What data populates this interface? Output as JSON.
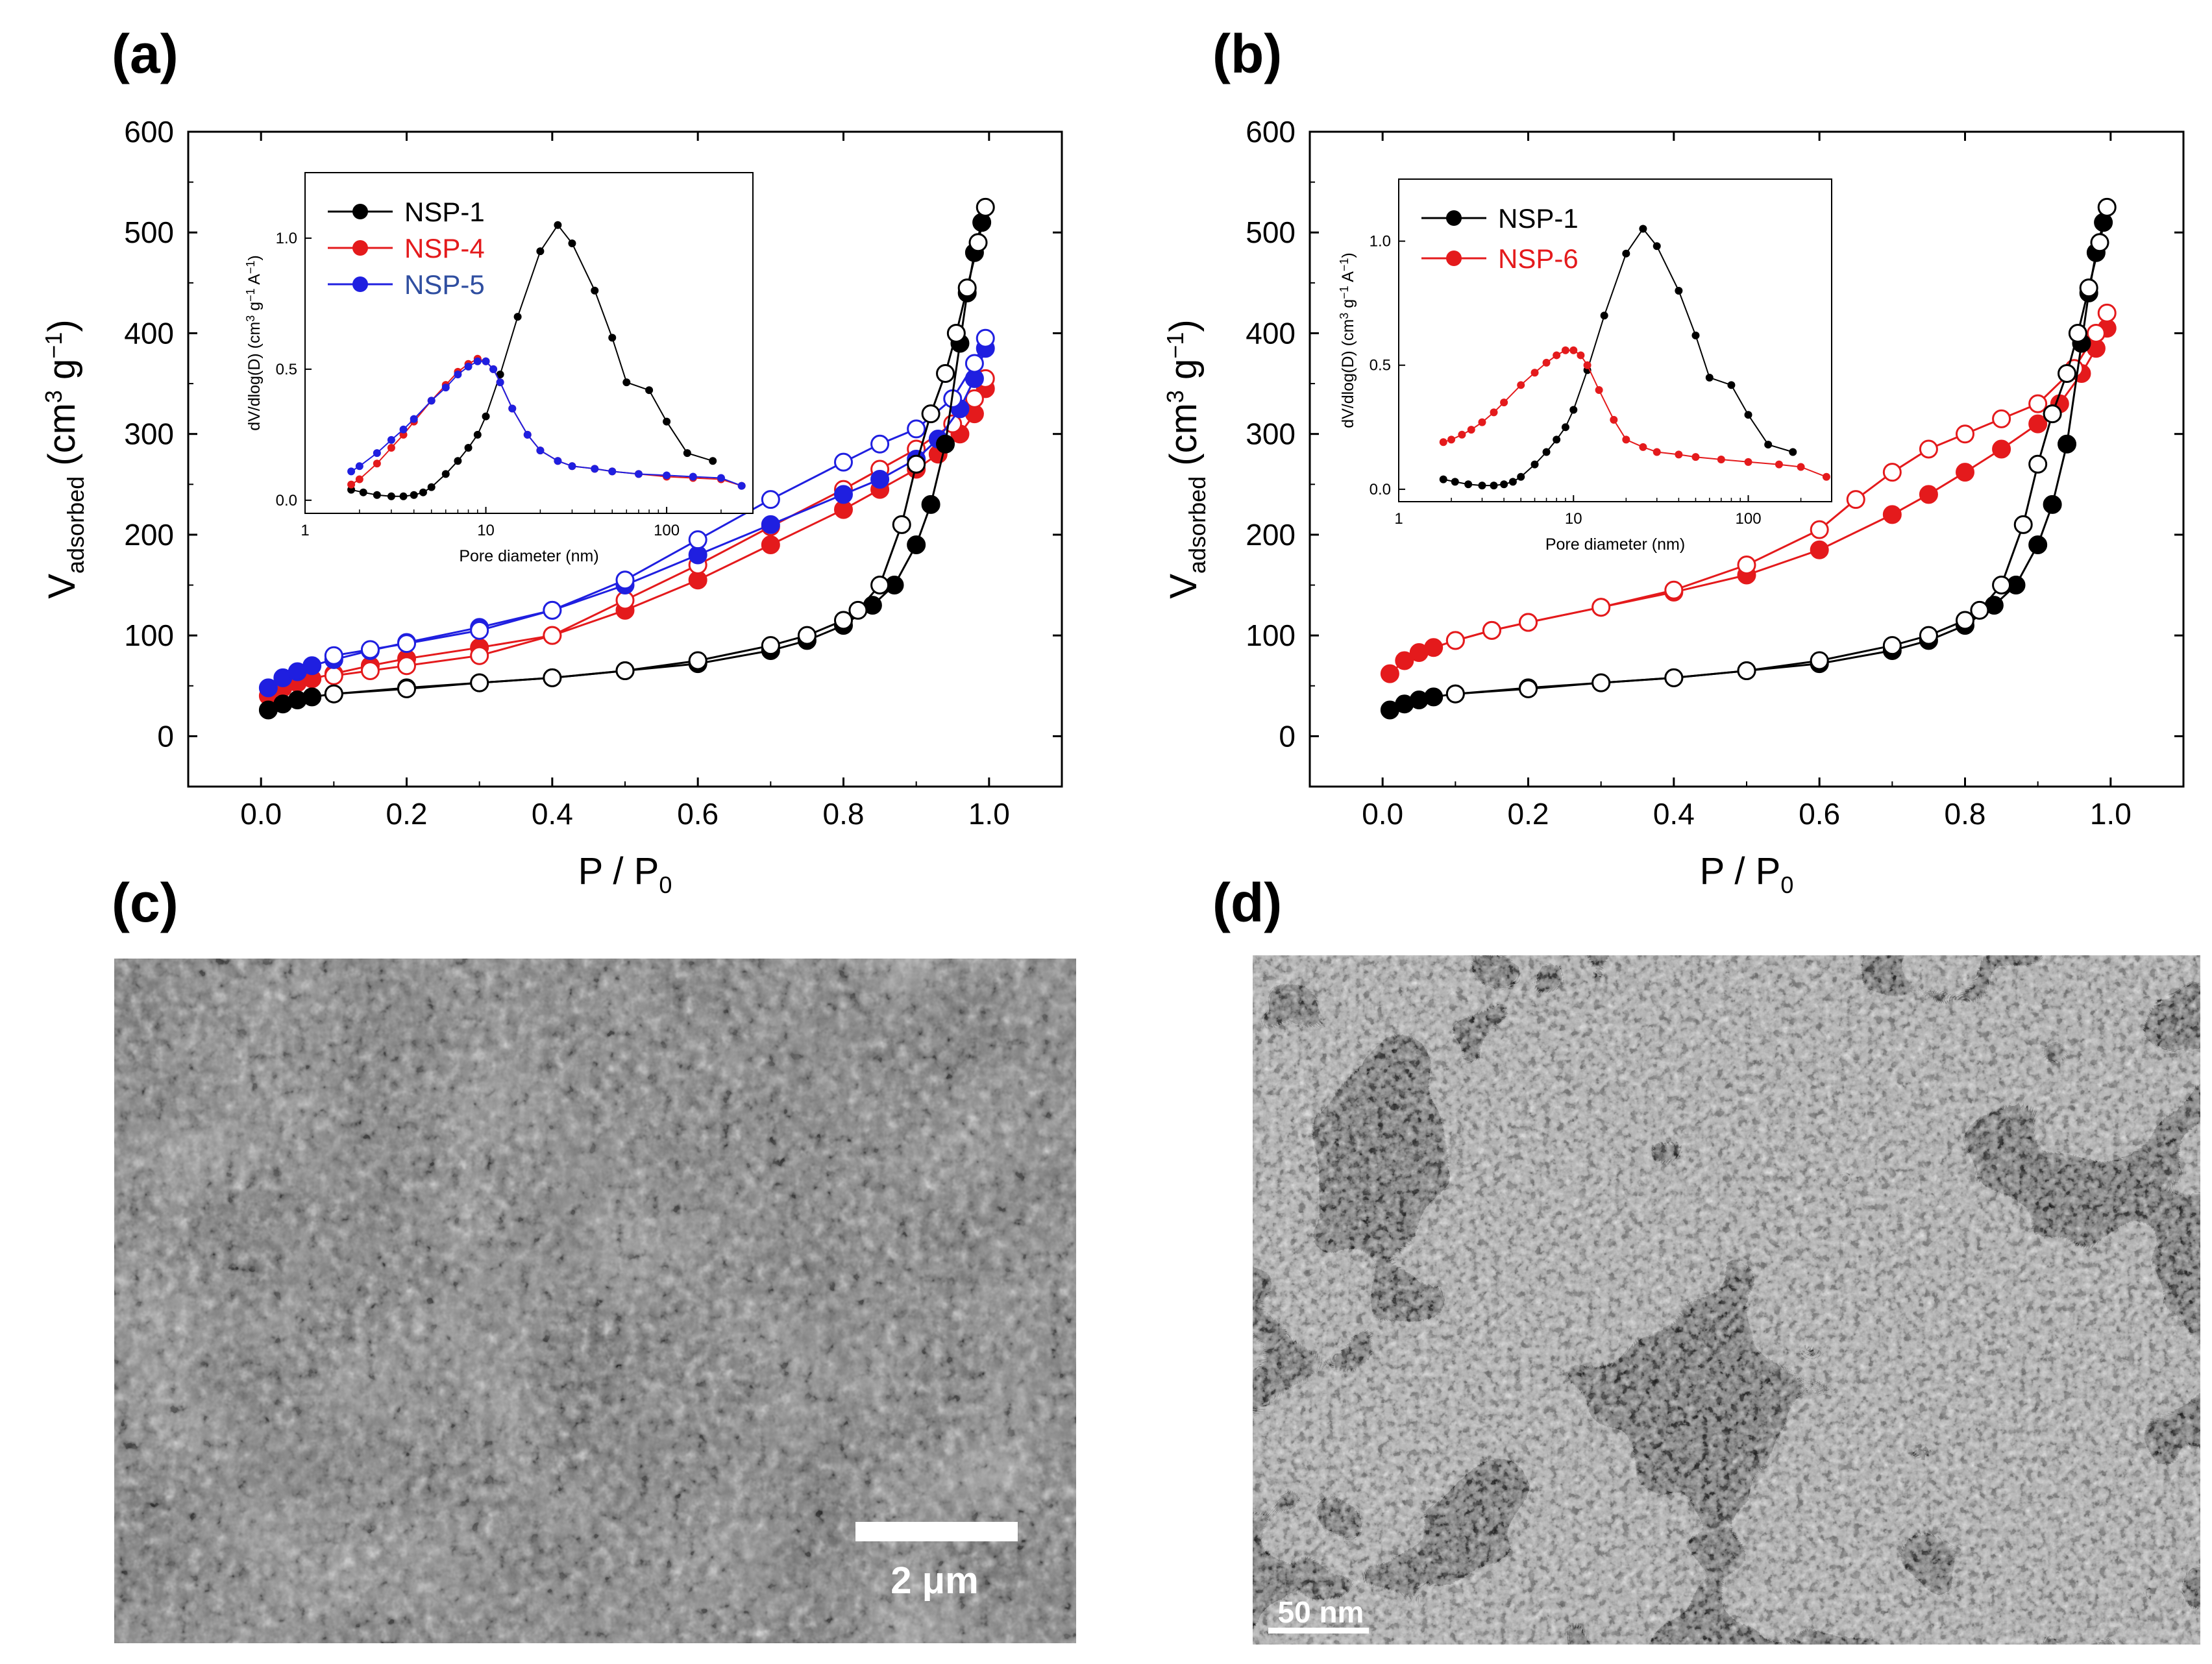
{
  "panels": {
    "a": {
      "letter": "(a)"
    },
    "b": {
      "letter": "(b)"
    },
    "c": {
      "letter": "(c)",
      "scale_bar_label": "2 μm"
    },
    "d": {
      "letter": "(d)",
      "scale_bar_label": "50 nm"
    }
  },
  "colors": {
    "NSP-1": "#000000",
    "NSP-4": "#e41a1c",
    "NSP-5": "#1f1fe0",
    "NSP-6": "#e41a1c"
  },
  "chart_data": [
    {
      "id": "a",
      "type": "scatter",
      "title": "",
      "xlabel": "P / P0",
      "ylabel": "Vadsorbed (cm3 g-1)",
      "xlabel_main": "P / P",
      "xlabel_sub": "0",
      "ylabel_main": "V",
      "ylabel_sub": "adsorbed",
      "ylabel_unit": "(cm",
      "ylabel_sup3": "3",
      "ylabel_g": " g",
      "ylabel_sup_neg1": "−1",
      "ylabel_close": ")",
      "xlim": [
        -0.1,
        1.1
      ],
      "ylim": [
        -50,
        600
      ],
      "xticks": [
        "0.0",
        "0.2",
        "0.4",
        "0.6",
        "0.8",
        "1.0"
      ],
      "yticks": [
        "0",
        "100",
        "200",
        "300",
        "400",
        "500",
        "600"
      ],
      "series": [
        {
          "name": "NSP-4",
          "kind": "adsorption",
          "x": [
            0.01,
            0.03,
            0.05,
            0.07,
            0.1,
            0.15,
            0.2,
            0.3,
            0.4,
            0.5,
            0.6,
            0.7,
            0.8,
            0.85,
            0.9,
            0.93,
            0.96,
            0.98,
            0.995
          ],
          "y": [
            40,
            48,
            53,
            57,
            62,
            70,
            77,
            88,
            100,
            125,
            155,
            190,
            225,
            245,
            265,
            280,
            300,
            320,
            345
          ]
        },
        {
          "name": "NSP-4",
          "kind": "desorption",
          "x": [
            0.995,
            0.98,
            0.95,
            0.9,
            0.85,
            0.8,
            0.7,
            0.6,
            0.5,
            0.4,
            0.3,
            0.2,
            0.15,
            0.1
          ],
          "y": [
            355,
            335,
            310,
            285,
            265,
            245,
            208,
            170,
            135,
            100,
            80,
            70,
            65,
            60
          ]
        },
        {
          "name": "NSP-5",
          "kind": "adsorption",
          "x": [
            0.01,
            0.03,
            0.05,
            0.07,
            0.1,
            0.15,
            0.2,
            0.3,
            0.4,
            0.5,
            0.6,
            0.7,
            0.8,
            0.85,
            0.9,
            0.93,
            0.96,
            0.98,
            0.995
          ],
          "y": [
            48,
            58,
            64,
            70,
            76,
            85,
            93,
            108,
            125,
            150,
            180,
            210,
            240,
            255,
            275,
            295,
            325,
            355,
            385
          ]
        },
        {
          "name": "NSP-5",
          "kind": "desorption",
          "x": [
            0.995,
            0.98,
            0.95,
            0.9,
            0.85,
            0.8,
            0.7,
            0.6,
            0.5,
            0.4,
            0.3,
            0.2,
            0.15,
            0.1
          ],
          "y": [
            395,
            370,
            335,
            305,
            290,
            272,
            235,
            195,
            155,
            125,
            105,
            92,
            86,
            80
          ]
        },
        {
          "name": "NSP-1",
          "kind": "adsorption",
          "x": [
            0.01,
            0.03,
            0.05,
            0.07,
            0.1,
            0.2,
            0.3,
            0.4,
            0.5,
            0.6,
            0.7,
            0.75,
            0.8,
            0.84,
            0.87,
            0.9,
            0.92,
            0.94,
            0.96,
            0.97,
            0.98,
            0.99
          ],
          "y": [
            26,
            32,
            36,
            39,
            42,
            48,
            53,
            58,
            65,
            72,
            85,
            95,
            110,
            130,
            150,
            190,
            230,
            290,
            390,
            440,
            480,
            510
          ]
        },
        {
          "name": "NSP-1",
          "kind": "desorption",
          "x": [
            0.995,
            0.985,
            0.97,
            0.955,
            0.94,
            0.92,
            0.9,
            0.88,
            0.85,
            0.82,
            0.8,
            0.75,
            0.7,
            0.6,
            0.5,
            0.4,
            0.3,
            0.2,
            0.1
          ],
          "y": [
            525,
            490,
            445,
            400,
            360,
            320,
            270,
            210,
            150,
            125,
            115,
            100,
            90,
            75,
            65,
            58,
            53,
            47,
            42
          ]
        }
      ],
      "inset": {
        "type": "line",
        "xlabel": "Pore diameter (nm)",
        "ylabel": "dV/dlog(D) (cm3 g-1 A-1)",
        "ylabel_text": "dV/dlog(D) (cm",
        "ylabel_tail": " g",
        "ylabel_tail2": " A",
        "ylabel_sup3": "3",
        "ylabel_sup_neg1": "−1",
        "ylabel_sup_neg1b": "−1",
        "ylabel_close": ")",
        "xscale": "log",
        "xlim": [
          1,
          300
        ],
        "ylim": [
          -0.05,
          1.25
        ],
        "xticks": [
          "1",
          "10",
          "100"
        ],
        "yticks": [
          "0.0",
          "0.5",
          "1.0"
        ],
        "legend": [
          "NSP-1",
          "NSP-4",
          "NSP-5"
        ],
        "series": [
          {
            "name": "NSP-1",
            "x": [
              1.8,
              2.1,
              2.5,
              3,
              3.5,
              4,
              4.5,
              5,
              6,
              7,
              8,
              9,
              10,
              12,
              15,
              20,
              25,
              30,
              40,
              50,
              60,
              80,
              100,
              130,
              180
            ],
            "y": [
              0.04,
              0.03,
              0.02,
              0.015,
              0.015,
              0.02,
              0.03,
              0.05,
              0.1,
              0.15,
              0.2,
              0.25,
              0.32,
              0.48,
              0.7,
              0.95,
              1.05,
              0.98,
              0.8,
              0.62,
              0.45,
              0.42,
              0.3,
              0.18,
              0.15
            ]
          },
          {
            "name": "NSP-4",
            "x": [
              1.8,
              2,
              2.5,
              3,
              3.5,
              4,
              5,
              6,
              7,
              8,
              9,
              10,
              11,
              12,
              14,
              17,
              20,
              25,
              30,
              40,
              50,
              70,
              100,
              140,
              200,
              260
            ],
            "y": [
              0.06,
              0.08,
              0.14,
              0.2,
              0.25,
              0.3,
              0.38,
              0.44,
              0.49,
              0.52,
              0.54,
              0.53,
              0.5,
              0.45,
              0.35,
              0.25,
              0.19,
              0.15,
              0.13,
              0.12,
              0.11,
              0.1,
              0.09,
              0.085,
              0.08,
              0.055
            ]
          },
          {
            "name": "NSP-5",
            "x": [
              1.8,
              2,
              2.5,
              3,
              3.5,
              4,
              5,
              6,
              7,
              8,
              9,
              10,
              11,
              12,
              14,
              17,
              20,
              25,
              30,
              40,
              50,
              70,
              100,
              140,
              200,
              260
            ],
            "y": [
              0.11,
              0.13,
              0.18,
              0.23,
              0.27,
              0.31,
              0.38,
              0.43,
              0.48,
              0.51,
              0.53,
              0.53,
              0.5,
              0.45,
              0.35,
              0.25,
              0.19,
              0.15,
              0.13,
              0.12,
              0.11,
              0.1,
              0.095,
              0.09,
              0.085,
              0.055
            ]
          }
        ]
      }
    },
    {
      "id": "b",
      "type": "scatter",
      "title": "",
      "xlabel": "P / P0",
      "ylabel": "Vadsorbed (cm3 g-1)",
      "xlabel_main": "P / P",
      "xlabel_sub": "0",
      "ylabel_main": "V",
      "ylabel_sub": "adsorbed",
      "ylabel_unit": "(cm",
      "ylabel_sup3": "3",
      "ylabel_g": " g",
      "ylabel_sup_neg1": "−1",
      "ylabel_close": ")",
      "xlim": [
        -0.1,
        1.1
      ],
      "ylim": [
        -50,
        600
      ],
      "xticks": [
        "0.0",
        "0.2",
        "0.4",
        "0.6",
        "0.8",
        "1.0"
      ],
      "yticks": [
        "0",
        "100",
        "200",
        "300",
        "400",
        "500",
        "600"
      ],
      "series": [
        {
          "name": "NSP-6",
          "kind": "adsorption",
          "x": [
            0.01,
            0.03,
            0.05,
            0.07,
            0.1,
            0.15,
            0.2,
            0.3,
            0.4,
            0.5,
            0.6,
            0.7,
            0.75,
            0.8,
            0.85,
            0.9,
            0.93,
            0.96,
            0.98,
            0.995
          ],
          "y": [
            62,
            75,
            83,
            88,
            95,
            105,
            113,
            128,
            143,
            160,
            185,
            220,
            240,
            262,
            285,
            310,
            330,
            360,
            385,
            405
          ]
        },
        {
          "name": "NSP-6",
          "kind": "desorption",
          "x": [
            0.995,
            0.98,
            0.95,
            0.9,
            0.85,
            0.8,
            0.75,
            0.7,
            0.65,
            0.6,
            0.5,
            0.4,
            0.3,
            0.2,
            0.15,
            0.1
          ],
          "y": [
            420,
            400,
            365,
            330,
            315,
            300,
            285,
            262,
            235,
            205,
            170,
            145,
            128,
            113,
            105,
            95
          ]
        },
        {
          "name": "NSP-1",
          "kind": "adsorption",
          "x": [
            0.01,
            0.03,
            0.05,
            0.07,
            0.1,
            0.2,
            0.3,
            0.4,
            0.5,
            0.6,
            0.7,
            0.75,
            0.8,
            0.84,
            0.87,
            0.9,
            0.92,
            0.94,
            0.96,
            0.97,
            0.98,
            0.99
          ],
          "y": [
            26,
            32,
            36,
            39,
            42,
            48,
            53,
            58,
            65,
            72,
            85,
            95,
            110,
            130,
            150,
            190,
            230,
            290,
            390,
            440,
            480,
            510
          ]
        },
        {
          "name": "NSP-1",
          "kind": "desorption",
          "x": [
            0.995,
            0.985,
            0.97,
            0.955,
            0.94,
            0.92,
            0.9,
            0.88,
            0.85,
            0.82,
            0.8,
            0.75,
            0.7,
            0.6,
            0.5,
            0.4,
            0.3,
            0.2,
            0.1
          ],
          "y": [
            525,
            490,
            445,
            400,
            360,
            320,
            270,
            210,
            150,
            125,
            115,
            100,
            90,
            75,
            65,
            58,
            53,
            47,
            42
          ]
        }
      ],
      "inset": {
        "type": "line",
        "xlabel": "Pore diameter (nm)",
        "ylabel": "dV/dlog(D) (cm3 g-1 A-1)",
        "ylabel_text": "dV/dlog(D) (cm",
        "ylabel_tail": " g",
        "ylabel_tail2": " A",
        "ylabel_sup3": "3",
        "ylabel_sup_neg1": "−1",
        "ylabel_sup_neg1b": "−1",
        "ylabel_close": ")",
        "xscale": "log",
        "xlim": [
          1,
          300
        ],
        "ylim": [
          -0.05,
          1.25
        ],
        "xticks": [
          "1",
          "10",
          "100"
        ],
        "yticks": [
          "0.0",
          "0.5",
          "1.0"
        ],
        "legend": [
          "NSP-1",
          "NSP-6"
        ],
        "series": [
          {
            "name": "NSP-1",
            "x": [
              1.8,
              2.1,
              2.5,
              3,
              3.5,
              4,
              4.5,
              5,
              6,
              7,
              8,
              9,
              10,
              12,
              15,
              20,
              25,
              30,
              40,
              50,
              60,
              80,
              100,
              130,
              180
            ],
            "y": [
              0.04,
              0.03,
              0.02,
              0.015,
              0.015,
              0.02,
              0.03,
              0.05,
              0.1,
              0.15,
              0.2,
              0.25,
              0.32,
              0.48,
              0.7,
              0.95,
              1.05,
              0.98,
              0.8,
              0.62,
              0.45,
              0.42,
              0.3,
              0.18,
              0.15
            ]
          },
          {
            "name": "NSP-6",
            "x": [
              1.8,
              2,
              2.3,
              2.6,
              3,
              3.5,
              4,
              5,
              6,
              7,
              8,
              9,
              10,
              11,
              12,
              14,
              17,
              20,
              25,
              30,
              40,
              50,
              70,
              100,
              150,
              200,
              280
            ],
            "y": [
              0.19,
              0.2,
              0.22,
              0.24,
              0.27,
              0.31,
              0.35,
              0.42,
              0.47,
              0.51,
              0.54,
              0.56,
              0.56,
              0.54,
              0.5,
              0.4,
              0.28,
              0.2,
              0.17,
              0.15,
              0.14,
              0.13,
              0.12,
              0.11,
              0.1,
              0.09,
              0.05
            ]
          }
        ]
      }
    }
  ]
}
